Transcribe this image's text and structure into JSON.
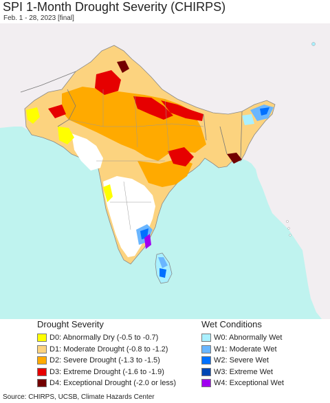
{
  "title": "SPI 1-Month Drought Severity (CHIRPS)",
  "subtitle": "Feb. 1 - 28, 2023 [final]",
  "colors": {
    "ocean": "#bff3ef",
    "land_outside": "#f2eef1",
    "border": "#888888",
    "state_border": "#999999",
    "neutral": "#ffffff"
  },
  "legend": {
    "drought": {
      "title": "Drought Severity",
      "items": [
        {
          "code": "D0",
          "label": "D0: Abnormally Dry (-0.5 to -0.7)",
          "color": "#ffff00"
        },
        {
          "code": "D1",
          "label": "D1: Moderate Drought (-0.8 to -1.2)",
          "color": "#fcd37f"
        },
        {
          "code": "D2",
          "label": "D2: Severe Drought (-1.3 to -1.5)",
          "color": "#ffaa00"
        },
        {
          "code": "D3",
          "label": "D3: Extreme Drought (-1.6 to -1.9)",
          "color": "#e60000"
        },
        {
          "code": "D4",
          "label": "D4: Exceptional Drought (-2.0 or less)",
          "color": "#730000"
        }
      ]
    },
    "wet": {
      "title": "Wet Conditions",
      "items": [
        {
          "code": "W0",
          "label": "W0: Abnormally Wet",
          "color": "#aaf0ff"
        },
        {
          "code": "W1",
          "label": "W1: Moderate Wet",
          "color": "#6ab6ff"
        },
        {
          "code": "W2",
          "label": "W2: Severe Wet",
          "color": "#0070ff"
        },
        {
          "code": "W3",
          "label": "W3: Extreme Wet",
          "color": "#0046b4"
        },
        {
          "code": "W4",
          "label": "W4: Exceptional Wet",
          "color": "#a000f0"
        }
      ]
    }
  },
  "source": "Source: CHIRPS, UCSB, Climate Hazards Center"
}
